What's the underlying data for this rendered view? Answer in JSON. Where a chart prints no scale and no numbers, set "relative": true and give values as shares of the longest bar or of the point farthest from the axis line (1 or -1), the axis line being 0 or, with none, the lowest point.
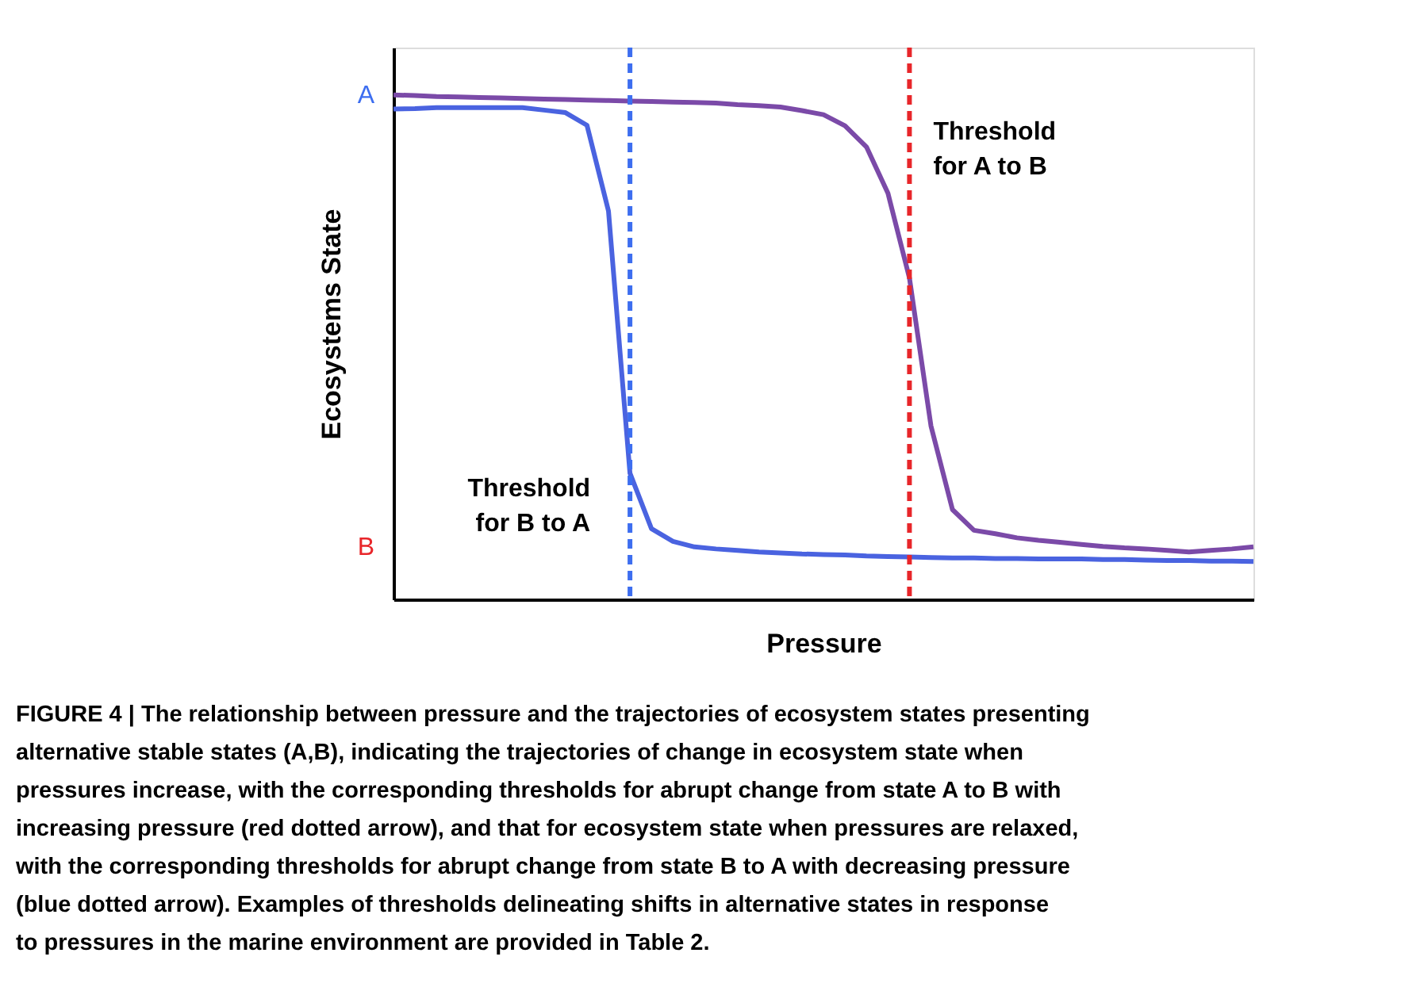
{
  "chart_data": {
    "type": "line",
    "relative": true,
    "xlabel": "Pressure",
    "ylabel": "Ecosystems State",
    "categories": [
      null,
      null,
      null,
      null,
      null,
      null,
      null,
      null,
      null,
      null,
      null,
      null,
      null,
      null,
      null,
      null,
      null,
      null,
      null,
      null,
      null,
      null,
      null,
      null,
      null,
      null,
      null,
      null,
      null,
      null,
      null,
      null,
      null,
      null,
      null,
      null,
      null,
      null,
      null,
      null,
      null
    ],
    "grid": false,
    "legend": false,
    "marker": "none",
    "line_style": "solid",
    "series": [
      {
        "color": "#7b4aa8",
        "values": [
          1.0,
          0.999,
          0.997,
          0.996,
          0.995,
          0.994,
          0.993,
          0.992,
          0.991,
          0.99,
          0.989,
          0.988,
          0.987,
          0.986,
          0.985,
          0.984,
          0.981,
          0.979,
          0.976,
          0.969,
          0.961,
          0.939,
          0.897,
          0.805,
          0.637,
          0.344,
          0.178,
          0.137,
          0.13,
          0.122,
          0.117,
          0.113,
          0.109,
          0.105,
          0.102,
          0.1,
          0.097,
          0.094,
          0.097,
          0.1,
          0.104
        ]
      },
      {
        "color": "#4a63e0",
        "values": [
          0.972,
          0.973,
          0.975,
          0.975,
          0.975,
          0.975,
          0.975,
          0.97,
          0.965,
          0.94,
          0.77,
          0.25,
          0.14,
          0.115,
          0.104,
          0.1,
          0.097,
          0.094,
          0.092,
          0.09,
          0.089,
          0.088,
          0.086,
          0.085,
          0.084,
          0.083,
          0.082,
          0.082,
          0.081,
          0.081,
          0.08,
          0.08,
          0.08,
          0.079,
          0.079,
          0.078,
          0.077,
          0.077,
          0.076,
          0.076,
          0.075
        ]
      }
    ],
    "annotations": [
      "A",
      "B",
      "Threshold for B to A",
      "Threshold for A to B",
      "FIGURE 4 | The relationship between pressure and the trajectories of ecosystem states presenting alternative stable states (A,B), indicating the trajectories of change in ecosystem state when pressures increase, with the corresponding thresholds for abrupt change from state A to B with increasing pressure (red dotted arrow), and that for ecosystem state when pressures are relaxed, with the corresponding thresholds for abrupt change from state B to A with decreasing pressure (blue dotted arrow). Examples of thresholds delineating shifts in alternative states in response to pressures in the marine environment are provided in Table 2."
    ]
  }
}
